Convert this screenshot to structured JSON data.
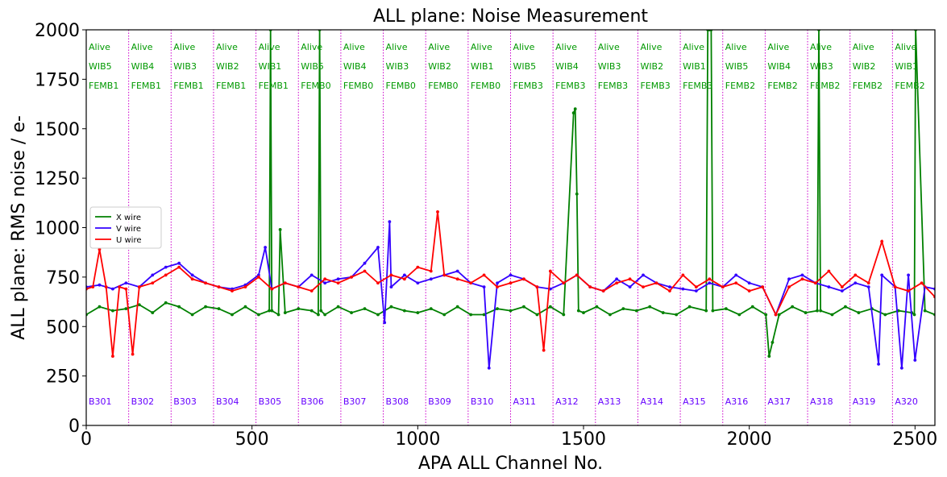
{
  "chart_data": {
    "type": "line",
    "title": "ALL plane: Noise Measurement",
    "xlabel": "APA ALL Channel No.",
    "ylabel": "ALL plane: RMS noise / e-",
    "xlim": [
      0,
      2560
    ],
    "ylim": [
      0,
      2000
    ],
    "xticks": [
      0,
      500,
      1000,
      1500,
      2000,
      2500
    ],
    "yticks": [
      0,
      250,
      500,
      750,
      1000,
      1250,
      1500,
      1750,
      2000
    ],
    "grid": false,
    "legend_position": "center-left",
    "colors": {
      "x_wire": "#008000",
      "v_wire": "#3300ff",
      "u_wire": "#ff0000",
      "divider": "#cc00cc",
      "status": "#009900",
      "board": "#6600ff"
    },
    "divider_channels": [
      128,
      256,
      384,
      512,
      640,
      768,
      896,
      1024,
      1152,
      1280,
      1408,
      1536,
      1664,
      1792,
      1920,
      2048,
      2176,
      2304,
      2432
    ],
    "segments": [
      {
        "status": "Alive",
        "wib": "WIB5",
        "femb": "FEMB1",
        "board": "B301"
      },
      {
        "status": "Alive",
        "wib": "WIB4",
        "femb": "FEMB1",
        "board": "B302"
      },
      {
        "status": "Alive",
        "wib": "WIB3",
        "femb": "FEMB1",
        "board": "B303"
      },
      {
        "status": "Alive",
        "wib": "WIB2",
        "femb": "FEMB1",
        "board": "B304"
      },
      {
        "status": "Alive",
        "wib": "WIB1",
        "femb": "FEMB1",
        "board": "B305"
      },
      {
        "status": "Alive",
        "wib": "WIB5",
        "femb": "FEMB0",
        "board": "B306"
      },
      {
        "status": "Alive",
        "wib": "WIB4",
        "femb": "FEMB0",
        "board": "B307"
      },
      {
        "status": "Alive",
        "wib": "WIB3",
        "femb": "FEMB0",
        "board": "B308"
      },
      {
        "status": "Alive",
        "wib": "WIB2",
        "femb": "FEMB0",
        "board": "B309"
      },
      {
        "status": "Alive",
        "wib": "WIB1",
        "femb": "FEMB0",
        "board": "B310"
      },
      {
        "status": "Alive",
        "wib": "WIB5",
        "femb": "FEMB3",
        "board": "A311"
      },
      {
        "status": "Alive",
        "wib": "WIB4",
        "femb": "FEMB3",
        "board": "A312"
      },
      {
        "status": "Alive",
        "wib": "WIB3",
        "femb": "FEMB3",
        "board": "A313"
      },
      {
        "status": "Alive",
        "wib": "WIB2",
        "femb": "FEMB3",
        "board": "A314"
      },
      {
        "status": "Alive",
        "wib": "WIB1",
        "femb": "FEMB3",
        "board": "A315"
      },
      {
        "status": "Alive",
        "wib": "WIB5",
        "femb": "FEMB2",
        "board": "A316"
      },
      {
        "status": "Alive",
        "wib": "WIB4",
        "femb": "FEMB2",
        "board": "A317"
      },
      {
        "status": "Alive",
        "wib": "WIB3",
        "femb": "FEMB2",
        "board": "A318"
      },
      {
        "status": "Alive",
        "wib": "WIB2",
        "femb": "FEMB2",
        "board": "A319"
      },
      {
        "status": "Alive",
        "wib": "WIB1",
        "femb": "FEMB2",
        "board": "A320"
      }
    ],
    "series": [
      {
        "name": "X wire",
        "x": [
          0,
          40,
          80,
          120,
          160,
          200,
          240,
          280,
          320,
          360,
          400,
          440,
          480,
          520,
          552,
          556,
          560,
          580,
          585,
          600,
          640,
          680,
          700,
          704,
          708,
          720,
          760,
          800,
          840,
          880,
          920,
          960,
          1000,
          1040,
          1080,
          1120,
          1160,
          1200,
          1240,
          1280,
          1320,
          1360,
          1400,
          1440,
          1470,
          1475,
          1480,
          1485,
          1500,
          1540,
          1580,
          1620,
          1660,
          1700,
          1740,
          1780,
          1820,
          1870,
          1875,
          1880,
          1885,
          1890,
          1930,
          1970,
          2010,
          2050,
          2060,
          2070,
          2090,
          2130,
          2170,
          2205,
          2210,
          2215,
          2250,
          2290,
          2330,
          2370,
          2410,
          2450,
          2490,
          2498,
          2502,
          2530,
          2560
        ],
        "y": [
          560,
          600,
          580,
          590,
          610,
          570,
          620,
          600,
          560,
          600,
          590,
          560,
          600,
          560,
          580,
          2000,
          580,
          560,
          990,
          570,
          590,
          580,
          560,
          2000,
          580,
          560,
          600,
          570,
          590,
          560,
          600,
          580,
          570,
          590,
          560,
          600,
          560,
          560,
          590,
          580,
          600,
          560,
          600,
          560,
          1580,
          1600,
          1170,
          580,
          570,
          600,
          560,
          590,
          580,
          600,
          570,
          560,
          600,
          580,
          2000,
          2000,
          2000,
          580,
          590,
          560,
          600,
          560,
          350,
          420,
          560,
          600,
          570,
          580,
          2000,
          580,
          560,
          600,
          570,
          590,
          560,
          580,
          570,
          560,
          2000,
          580,
          560
        ]
      },
      {
        "name": "V wire",
        "x": [
          0,
          40,
          80,
          120,
          160,
          200,
          240,
          280,
          320,
          360,
          400,
          440,
          480,
          520,
          540,
          560,
          600,
          640,
          680,
          720,
          760,
          800,
          840,
          880,
          900,
          915,
          920,
          960,
          1000,
          1040,
          1080,
          1120,
          1160,
          1200,
          1215,
          1240,
          1280,
          1320,
          1360,
          1400,
          1440,
          1480,
          1520,
          1560,
          1600,
          1640,
          1680,
          1720,
          1760,
          1800,
          1840,
          1880,
          1920,
          1960,
          2000,
          2040,
          2080,
          2120,
          2160,
          2200,
          2240,
          2280,
          2320,
          2360,
          2390,
          2400,
          2440,
          2460,
          2480,
          2500,
          2530,
          2560
        ],
        "y": [
          700,
          710,
          690,
          720,
          700,
          760,
          800,
          820,
          760,
          720,
          700,
          690,
          710,
          760,
          900,
          690,
          720,
          700,
          760,
          720,
          740,
          750,
          820,
          900,
          520,
          1030,
          700,
          760,
          720,
          740,
          760,
          780,
          720,
          700,
          290,
          720,
          760,
          740,
          700,
          690,
          720,
          760,
          700,
          680,
          740,
          700,
          760,
          720,
          700,
          690,
          680,
          720,
          700,
          760,
          720,
          700,
          560,
          740,
          760,
          720,
          700,
          680,
          720,
          700,
          310,
          760,
          700,
          290,
          760,
          330,
          700,
          690
        ]
      },
      {
        "name": "U wire",
        "x": [
          0,
          20,
          40,
          60,
          80,
          100,
          120,
          140,
          160,
          200,
          240,
          280,
          320,
          360,
          400,
          440,
          480,
          520,
          560,
          600,
          640,
          680,
          720,
          760,
          800,
          840,
          880,
          920,
          960,
          1000,
          1040,
          1060,
          1080,
          1120,
          1160,
          1200,
          1240,
          1280,
          1320,
          1360,
          1380,
          1400,
          1440,
          1480,
          1520,
          1560,
          1600,
          1640,
          1680,
          1720,
          1760,
          1800,
          1840,
          1880,
          1920,
          1960,
          2000,
          2040,
          2080,
          2120,
          2160,
          2200,
          2240,
          2280,
          2320,
          2360,
          2400,
          2440,
          2480,
          2520,
          2560
        ],
        "y": [
          690,
          700,
          890,
          700,
          350,
          700,
          690,
          360,
          700,
          720,
          760,
          800,
          740,
          720,
          700,
          680,
          700,
          750,
          690,
          720,
          700,
          680,
          740,
          720,
          750,
          780,
          720,
          760,
          740,
          800,
          780,
          1080,
          760,
          740,
          720,
          760,
          700,
          720,
          740,
          700,
          380,
          780,
          720,
          760,
          700,
          680,
          720,
          740,
          700,
          720,
          680,
          760,
          700,
          740,
          700,
          720,
          680,
          700,
          560,
          700,
          740,
          720,
          780,
          700,
          760,
          720,
          930,
          700,
          680,
          720,
          650
        ]
      }
    ]
  }
}
